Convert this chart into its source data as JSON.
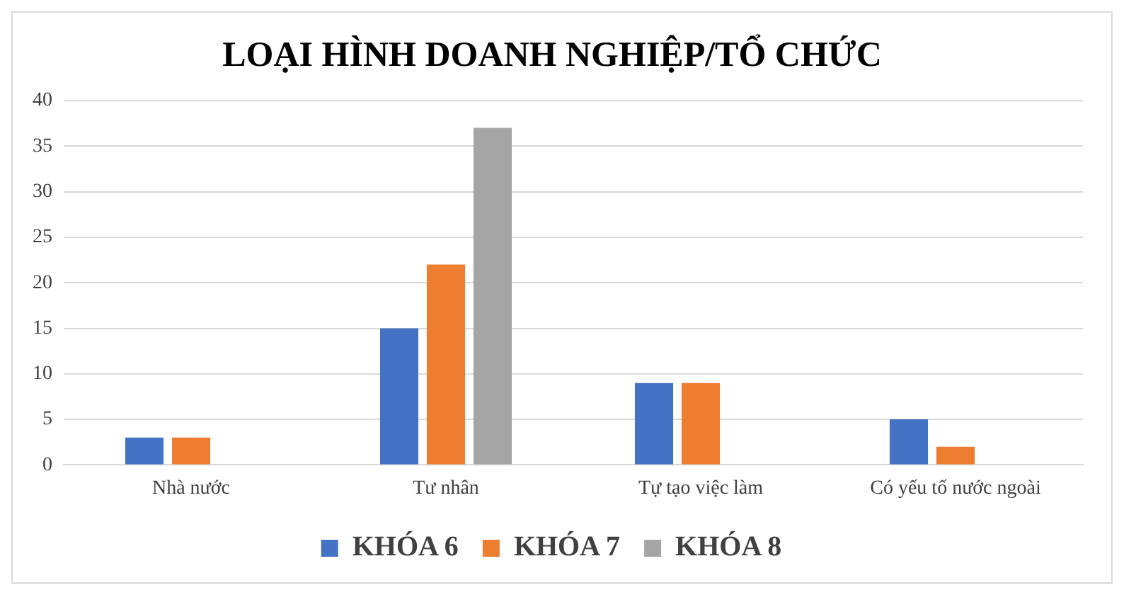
{
  "chart_data": {
    "type": "bar",
    "title": "LOẠI HÌNH DOANH NGHIỆP/TỔ CHỨC",
    "categories": [
      "Nhà nước",
      "Tư nhân",
      "Tự tạo việc làm",
      "Có yếu tố nước ngoài"
    ],
    "series": [
      {
        "name": "KHÓA 6",
        "color": "#4472c4",
        "values": [
          3,
          15,
          9,
          5
        ]
      },
      {
        "name": "KHÓA 7",
        "color": "#ed7d31",
        "values": [
          3,
          22,
          9,
          2
        ]
      },
      {
        "name": "KHÓA 8",
        "color": "#a5a5a5",
        "values": [
          0,
          37,
          0,
          0
        ]
      }
    ],
    "ylim": [
      0,
      40
    ],
    "yticks": [
      0,
      5,
      10,
      15,
      20,
      25,
      30,
      35,
      40
    ],
    "grid": "y",
    "legend": "bottom"
  }
}
